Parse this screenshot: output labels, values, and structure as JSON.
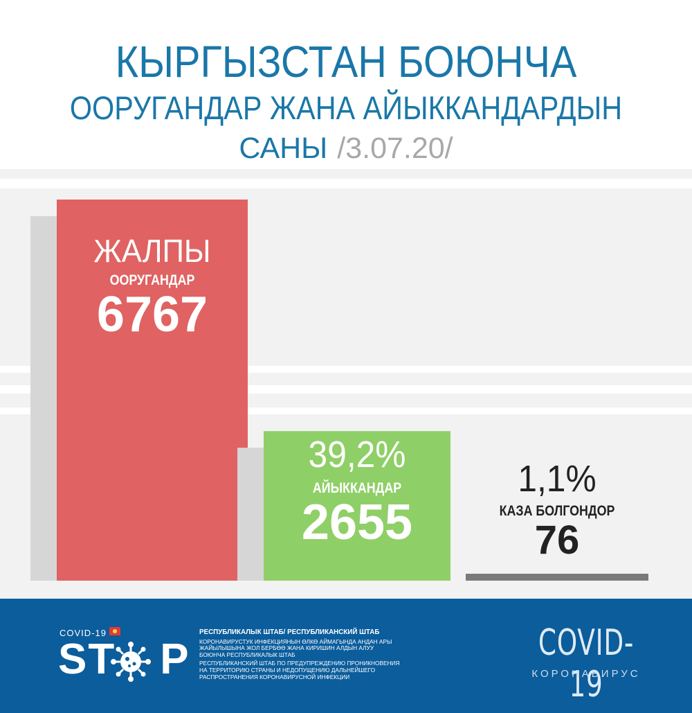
{
  "header": {
    "line1": "КЫРГЫЗСТАН БОЮНЧА",
    "line2": "ООРУГАНДАР ЖАНА АЙЫККАНДАРДЫН",
    "line3": "САНЫ",
    "date": "/3.07.20/"
  },
  "colors": {
    "title": "#1a77a8",
    "total_bar": "#e06262",
    "recovered_bar": "#8fcf67",
    "deaths_bar": "#7a7a7a",
    "footer": "#0b5d9c",
    "date": "#a8a8a8"
  },
  "chart_data": {
    "type": "bar",
    "categories": [
      "ЖАЛПЫ ООРУГАНДАР",
      "АЙЫККАНДАР",
      "КАЗА БОЛГОНДОР"
    ],
    "values": [
      6767,
      2655,
      76
    ],
    "bars": [
      {
        "top_label": "ЖАЛПЫ",
        "label": "ООРУГАНДАР",
        "value_text": "6767",
        "percent": ""
      },
      {
        "top_label": "",
        "label": "АЙЫККАНДАР",
        "value_text": "2655",
        "percent": "39,2%"
      },
      {
        "top_label": "",
        "label": "КАЗА БОЛГОНДОР",
        "value_text": "76",
        "percent": "1,1%"
      }
    ],
    "ylim": [
      0,
      6767
    ],
    "grid": false
  },
  "footer": {
    "covid_small": "COVID-19",
    "stop": "ST",
    "stop_end": "P",
    "hq_title": "РЕСПУБЛИКАЛЫК ШТАБ/ РЕСПУБЛИКАНСКИЙ ШТАБ",
    "hq_kg": "КОРОНАВИРУСТУК ИНФЕКЦИЯНЫН ӨЛКӨ АЙМАГЫНДА АНДАН АРЫ ЖАЙЫЛЫШЫНА ЖОЛ БЕРБӨӨ ЖАНА КИРИШИН АЛДЫН АЛУУ БОЮНЧА РЕСПУБЛИКАЛЫК ШТАБ",
    "hq_ru": "РЕСПУБЛИКАНСКИЙ ШТАБ ПО ПРЕДУПРЕЖДЕНИЮ ПРОНИКНОВЕНИЯ НА ТЕРРИТОРИЮ СТРАНЫ И НЕДОПУЩЕНИЮ ДАЛЬНЕЙШЕГО РАСПРОСТРАНЕНИЯ КОРОНАВИРУСНОЙ ИНФЕКЦИИ",
    "covid_big": "COVID-19",
    "corona": "КОРОНАВИРУС"
  }
}
